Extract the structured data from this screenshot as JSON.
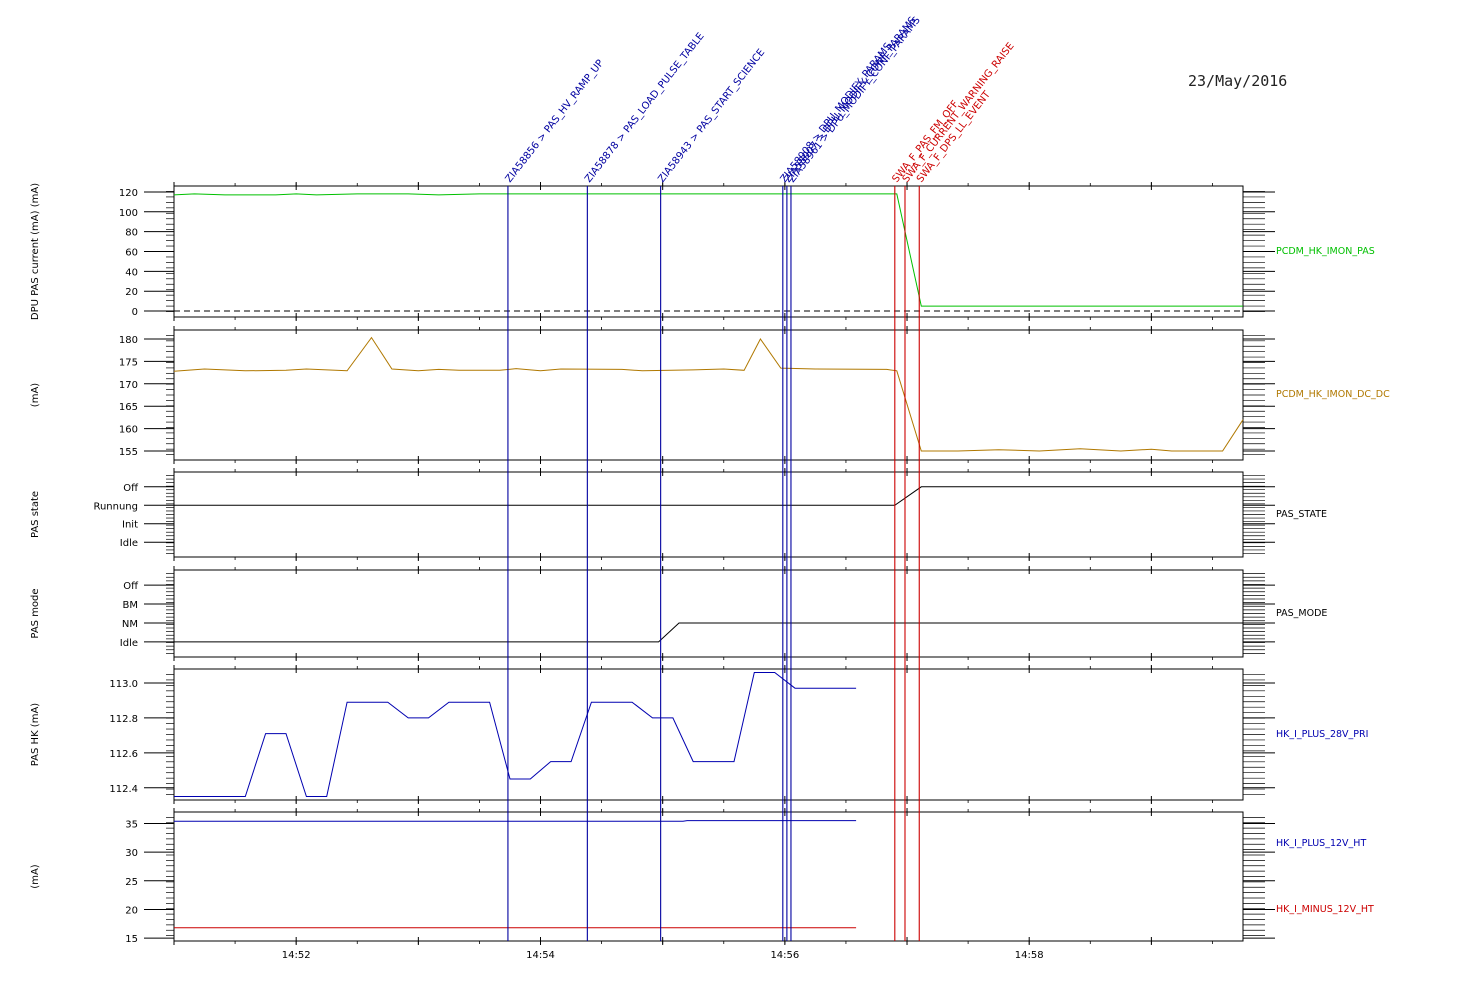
{
  "date_label": "23/May/2016",
  "chart_data": {
    "type": "line",
    "x_axis": {
      "range": [
        "14:51:00",
        "14:59:45"
      ],
      "tick_labels": [
        "14:52",
        "14:54",
        "14:56",
        "14:58"
      ]
    },
    "events": [
      {
        "time": "14:53:44",
        "label": "ZIA58856 > PAS_HV_RAMP_UP",
        "color": "#0000a0"
      },
      {
        "time": "14:54:23",
        "label": "ZIA58878 > PAS_LOAD_PULSE_TABLE",
        "color": "#0000a0"
      },
      {
        "time": "14:54:59",
        "label": "ZIA58943 > PAS_START_SCIENCE",
        "color": "#0000a0"
      },
      {
        "time": "14:55:59",
        "label": "ZIA58908 > DPU_MODIFY_PARAMS",
        "color": "#0000a0"
      },
      {
        "time": "14:56:01",
        "label": "ZIA58907 > DPU_MODIFY_CONF_PARAMS",
        "color": "#0000a0"
      },
      {
        "time": "14:56:03",
        "label": "ZIA58961 > DPU_MODIFY_CONF_PARAMS",
        "color": "#0000a0"
      },
      {
        "time": "14:56:54",
        "label": "SWA_F_PAS_FM_OFF",
        "color": "#cc0000"
      },
      {
        "time": "14:56:59",
        "label": "SWA_F_CURRENT_WARNING_RAISE",
        "color": "#cc0000"
      },
      {
        "time": "14:57:06",
        "label": "SWA_F_DPS_LL_EVENT",
        "color": "#cc0000"
      }
    ],
    "panels": [
      {
        "ylabel": "DPU PAS current (mA)  (mA)",
        "ylim": [
          -6,
          126
        ],
        "yticks": [
          {
            "v": 0,
            "l": "0"
          },
          {
            "v": 20,
            "l": "20"
          },
          {
            "v": 40,
            "l": "40"
          },
          {
            "v": 60,
            "l": "60"
          },
          {
            "v": 80,
            "l": "80"
          },
          {
            "v": 100,
            "l": "100"
          },
          {
            "v": 120,
            "l": "120"
          }
        ],
        "reference_line": 0,
        "series": [
          {
            "name": "PCDM_HK_IMON_PAS",
            "color": "#00c000",
            "points": [
              [
                "14:51:00",
                117
              ],
              [
                "14:51:10",
                118
              ],
              [
                "14:51:25",
                117
              ],
              [
                "14:51:50",
                117
              ],
              [
                "14:52:00",
                118
              ],
              [
                "14:52:10",
                117
              ],
              [
                "14:52:30",
                118
              ],
              [
                "14:52:55",
                118
              ],
              [
                "14:53:10",
                117
              ],
              [
                "14:53:30",
                118
              ],
              [
                "14:55:00",
                118
              ],
              [
                "14:56:00",
                118
              ],
              [
                "14:56:45",
                118
              ],
              [
                "14:56:55",
                118
              ],
              [
                "14:57:07",
                5
              ],
              [
                "14:59:45",
                5
              ]
            ]
          }
        ]
      },
      {
        "ylabel": "(mA)",
        "ylim": [
          153,
          182
        ],
        "yticks": [
          {
            "v": 155,
            "l": "155"
          },
          {
            "v": 160,
            "l": "160"
          },
          {
            "v": 165,
            "l": "165"
          },
          {
            "v": 170,
            "l": "170"
          },
          {
            "v": 175,
            "l": "175"
          },
          {
            "v": 180,
            "l": "180"
          }
        ],
        "series": [
          {
            "name": "PCDM_HK_IMON_DC_DC",
            "color": "#b07800",
            "points": [
              [
                "14:51:00",
                172.8
              ],
              [
                "14:51:15",
                173.3
              ],
              [
                "14:51:35",
                172.9
              ],
              [
                "14:51:55",
                173.0
              ],
              [
                "14:52:05",
                173.3
              ],
              [
                "14:52:25",
                172.9
              ],
              [
                "14:52:37",
                180.3
              ],
              [
                "14:52:47",
                173.3
              ],
              [
                "14:53:00",
                172.9
              ],
              [
                "14:53:10",
                173.2
              ],
              [
                "14:53:20",
                173.0
              ],
              [
                "14:53:40",
                173.0
              ],
              [
                "14:53:48",
                173.4
              ],
              [
                "14:54:00",
                172.9
              ],
              [
                "14:54:10",
                173.3
              ],
              [
                "14:54:40",
                173.2
              ],
              [
                "14:54:50",
                172.9
              ],
              [
                "14:55:15",
                173.1
              ],
              [
                "14:55:30",
                173.3
              ],
              [
                "14:55:40",
                173.0
              ],
              [
                "14:55:48",
                180.0
              ],
              [
                "14:55:58",
                173.5
              ],
              [
                "14:56:15",
                173.3
              ],
              [
                "14:56:50",
                173.2
              ],
              [
                "14:56:55",
                172.9
              ],
              [
                "14:57:07",
                155.0
              ],
              [
                "14:57:25",
                155.0
              ],
              [
                "14:57:45",
                155.3
              ],
              [
                "14:58:05",
                155.0
              ],
              [
                "14:58:25",
                155.5
              ],
              [
                "14:58:45",
                155.0
              ],
              [
                "14:59:00",
                155.4
              ],
              [
                "14:59:10",
                155.0
              ],
              [
                "14:59:35",
                155.0
              ],
              [
                "14:59:45",
                162.0
              ]
            ]
          }
        ]
      },
      {
        "ylabel": "PAS state",
        "ylim": [
          -0.8,
          3.8
        ],
        "yticks": [
          {
            "v": 0,
            "l": "Idle"
          },
          {
            "v": 1,
            "l": "Init"
          },
          {
            "v": 2,
            "l": "Runnung"
          },
          {
            "v": 3,
            "l": "Off"
          }
        ],
        "series": [
          {
            "name": "PAS_STATE",
            "color": "#000000",
            "points": [
              [
                "14:51:00",
                2
              ],
              [
                "14:56:54",
                2
              ],
              [
                "14:57:07",
                3
              ],
              [
                "14:59:45",
                3
              ]
            ]
          }
        ]
      },
      {
        "ylabel": "PAS mode",
        "ylim": [
          -0.8,
          3.8
        ],
        "yticks": [
          {
            "v": 0,
            "l": "Idle"
          },
          {
            "v": 1,
            "l": "NM"
          },
          {
            "v": 2,
            "l": "BM"
          },
          {
            "v": 3,
            "l": "Off"
          }
        ],
        "series": [
          {
            "name": "PAS_MODE",
            "color": "#000000",
            "points": [
              [
                "14:51:00",
                0
              ],
              [
                "14:54:58",
                0
              ],
              [
                "14:55:08",
                1
              ],
              [
                "14:59:45",
                1
              ]
            ]
          }
        ]
      },
      {
        "ylabel": "PAS HK  (mA)",
        "ylim": [
          112.33,
          113.08
        ],
        "yticks": [
          {
            "v": 112.4,
            "l": "112.4"
          },
          {
            "v": 112.6,
            "l": "112.6"
          },
          {
            "v": 112.8,
            "l": "112.8"
          },
          {
            "v": 113.0,
            "l": "113.0"
          }
        ],
        "series": [
          {
            "name": "HK_I_PLUS_28V_PRI",
            "color": "#0000b0",
            "points": [
              [
                "14:51:00",
                112.35
              ],
              [
                "14:51:35",
                112.35
              ],
              [
                "14:51:45",
                112.71
              ],
              [
                "14:51:55",
                112.71
              ],
              [
                "14:52:05",
                112.35
              ],
              [
                "14:52:15",
                112.35
              ],
              [
                "14:52:25",
                112.89
              ],
              [
                "14:52:45",
                112.89
              ],
              [
                "14:52:55",
                112.8
              ],
              [
                "14:53:05",
                112.8
              ],
              [
                "14:53:15",
                112.89
              ],
              [
                "14:53:35",
                112.89
              ],
              [
                "14:53:45",
                112.45
              ],
              [
                "14:53:55",
                112.45
              ],
              [
                "14:54:05",
                112.55
              ],
              [
                "14:54:15",
                112.55
              ],
              [
                "14:54:25",
                112.89
              ],
              [
                "14:54:45",
                112.89
              ],
              [
                "14:54:55",
                112.8
              ],
              [
                "14:55:05",
                112.8
              ],
              [
                "14:55:15",
                112.55
              ],
              [
                "14:55:35",
                112.55
              ],
              [
                "14:55:45",
                113.06
              ],
              [
                "14:55:55",
                113.06
              ],
              [
                "14:56:05",
                112.97
              ],
              [
                "14:56:35",
                112.97
              ]
            ]
          }
        ]
      },
      {
        "ylabel": "(mA)",
        "ylim": [
          14.5,
          37
        ],
        "yticks": [
          {
            "v": 15,
            "l": "15"
          },
          {
            "v": 20,
            "l": "20"
          },
          {
            "v": 25,
            "l": "25"
          },
          {
            "v": 30,
            "l": "30"
          },
          {
            "v": 35,
            "l": "35"
          }
        ],
        "series": [
          {
            "name": "HK_I_PLUS_12V_HT",
            "color": "#0000b0",
            "points": [
              [
                "14:51:00",
                35.4
              ],
              [
                "14:55:10",
                35.4
              ],
              [
                "14:55:12",
                35.5
              ],
              [
                "14:56:35",
                35.5
              ]
            ]
          },
          {
            "name": "HK_I_MINUS_12V_HT",
            "color": "#cc0000",
            "points": [
              [
                "14:51:00",
                16.8
              ],
              [
                "14:56:35",
                16.8
              ]
            ]
          }
        ]
      }
    ]
  }
}
